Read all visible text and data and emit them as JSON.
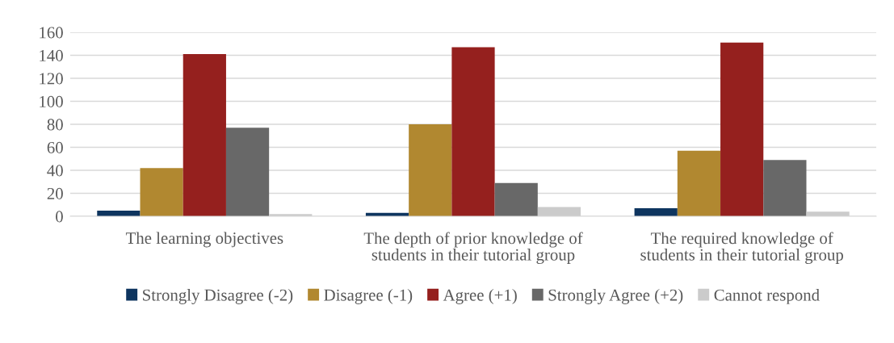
{
  "chart_data": {
    "type": "bar",
    "categories": [
      "The learning objectives",
      "The depth of prior knowledge of\nstudents in their tutorial group",
      "The required knowledge of\nstudents in their tutorial group"
    ],
    "series": [
      {
        "name": "Strongly Disagree (-2)",
        "color": "#0e355f",
        "values": [
          5,
          3,
          7
        ]
      },
      {
        "name": "Disagree (-1)",
        "color": "#b18830",
        "values": [
          42,
          80,
          57
        ]
      },
      {
        "name": "Agree (+1)",
        "color": "#95201e",
        "values": [
          141,
          147,
          151
        ]
      },
      {
        "name": "Strongly Agree (+2)",
        "color": "#686868",
        "values": [
          77,
          29,
          49
        ]
      },
      {
        "name": "Cannot respond",
        "color": "#cbcbcb",
        "values": [
          2,
          8,
          4
        ]
      }
    ],
    "ylim": [
      0,
      160
    ],
    "yticks": [
      0,
      20,
      40,
      60,
      80,
      100,
      120,
      140,
      160
    ],
    "grid": "y",
    "legend": "bottom"
  }
}
